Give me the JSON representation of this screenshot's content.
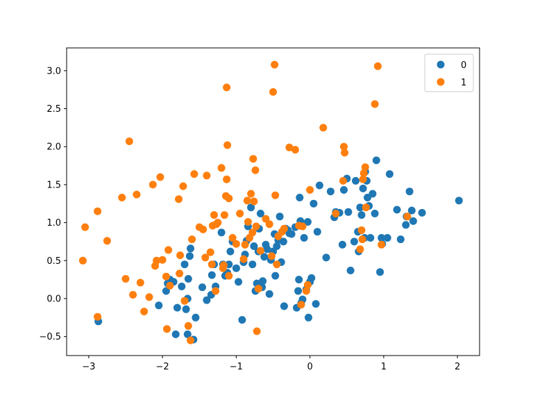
{
  "chart_data": {
    "type": "scatter",
    "xlim": [
      -3.3,
      2.3
    ],
    "ylim": [
      -0.75,
      3.3
    ],
    "xticks": [
      -3,
      -2,
      -1,
      0,
      1,
      2
    ],
    "xtick_labels": [
      "−3",
      "−2",
      "−1",
      "0",
      "1",
      "2"
    ],
    "yticks": [
      -0.5,
      0.0,
      0.5,
      1.0,
      1.5,
      2.0,
      2.5,
      3.0
    ],
    "ytick_labels": [
      "−0.5",
      "0.0",
      "0.5",
      "1.0",
      "1.5",
      "2.0",
      "2.5",
      "3.0"
    ],
    "grid": false,
    "legend_position": "top-right",
    "series": [
      {
        "name": "0",
        "color": "#1f77b4",
        "points": [
          [
            -2.87,
            -0.3
          ],
          [
            -2.05,
            -0.09
          ],
          [
            -1.95,
            0.1
          ],
          [
            -1.93,
            0.2
          ],
          [
            -1.9,
            0.25
          ],
          [
            -1.85,
            0.22
          ],
          [
            -1.8,
            -0.12
          ],
          [
            -1.82,
            -0.47
          ],
          [
            -1.74,
            0.16
          ],
          [
            -1.7,
            0.45
          ],
          [
            -1.68,
            -0.14
          ],
          [
            -1.66,
            0.0
          ],
          [
            -1.65,
            0.26
          ],
          [
            -1.66,
            -0.47
          ],
          [
            -1.63,
            0.56
          ],
          [
            -1.62,
            0.66
          ],
          [
            -1.58,
            -0.54
          ],
          [
            -1.55,
            -0.25
          ],
          [
            -1.46,
            0.15
          ],
          [
            -1.4,
            -0.02
          ],
          [
            -1.34,
            0.05
          ],
          [
            -1.33,
            0.31
          ],
          [
            -1.3,
            0.45
          ],
          [
            -1.28,
            0.16
          ],
          [
            -1.2,
            0.87
          ],
          [
            -1.18,
            0.45
          ],
          [
            -1.15,
            0.3
          ],
          [
            -1.12,
            0.34
          ],
          [
            -1.1,
            0.45
          ],
          [
            -1.08,
            0.62
          ],
          [
            -1.05,
            0.75
          ],
          [
            -1.0,
            0.4
          ],
          [
            -0.97,
            0.22
          ],
          [
            -0.92,
            -0.28
          ],
          [
            -0.9,
            0.48
          ],
          [
            -0.88,
            0.58
          ],
          [
            -0.86,
            0.76
          ],
          [
            -0.84,
            0.95
          ],
          [
            -0.8,
            1.2
          ],
          [
            -0.78,
            0.45
          ],
          [
            -0.76,
            0.69
          ],
          [
            -0.74,
            0.1
          ],
          [
            -0.72,
            0.2
          ],
          [
            -0.7,
            0.62
          ],
          [
            -0.69,
            0.92
          ],
          [
            -0.67,
            1.12
          ],
          [
            -0.65,
            0.15
          ],
          [
            -0.64,
            0.23
          ],
          [
            -0.62,
            0.55
          ],
          [
            -0.6,
            0.71
          ],
          [
            -0.58,
            0.65
          ],
          [
            -0.55,
            0.06
          ],
          [
            -0.53,
            0.51
          ],
          [
            -0.5,
            0.62
          ],
          [
            -0.48,
            0.85
          ],
          [
            -0.47,
            0.3
          ],
          [
            -0.45,
            0.69
          ],
          [
            -0.43,
            0.77
          ],
          [
            -0.41,
            1.08
          ],
          [
            -0.39,
            0.48
          ],
          [
            -0.36,
            0.75
          ],
          [
            -0.35,
            -0.1
          ],
          [
            -0.33,
            0.92
          ],
          [
            -0.3,
            0.9
          ],
          [
            -0.28,
            0.86
          ],
          [
            -0.25,
            0.85
          ],
          [
            -0.2,
            0.94
          ],
          [
            -0.18,
            -0.12
          ],
          [
            -0.16,
            0.1
          ],
          [
            -0.15,
            0.25
          ],
          [
            -0.14,
            1.33
          ],
          [
            -0.13,
            1.02
          ],
          [
            -0.12,
            -0.06
          ],
          [
            -0.1,
            -0.01
          ],
          [
            -0.08,
            0.8
          ],
          [
            -0.05,
            0.12
          ],
          [
            -0.03,
            1.01
          ],
          [
            -0.02,
            -0.25
          ],
          [
            0.0,
            0.22
          ],
          [
            0.02,
            0.27
          ],
          [
            0.05,
            1.25
          ],
          [
            0.08,
            -0.07
          ],
          [
            0.1,
            0.88
          ],
          [
            0.13,
            1.49
          ],
          [
            0.22,
            0.54
          ],
          [
            0.28,
            1.41
          ],
          [
            0.33,
            1.07
          ],
          [
            0.35,
            1.14
          ],
          [
            0.4,
            1.13
          ],
          [
            0.44,
            0.71
          ],
          [
            0.46,
            1.43
          ],
          [
            0.5,
            1.58
          ],
          [
            0.52,
            1.14
          ],
          [
            0.55,
            0.37
          ],
          [
            0.6,
            0.75
          ],
          [
            0.62,
            1.55
          ],
          [
            0.65,
            0.88
          ],
          [
            0.66,
            0.62
          ],
          [
            0.68,
            1.2
          ],
          [
            0.7,
            1.1
          ],
          [
            0.72,
            1.45
          ],
          [
            0.74,
            0.8
          ],
          [
            0.75,
            1.67
          ],
          [
            0.77,
            1.55
          ],
          [
            0.78,
            1.33
          ],
          [
            0.8,
            1.22
          ],
          [
            0.82,
            0.8
          ],
          [
            0.85,
            1.38
          ],
          [
            0.88,
            1.12
          ],
          [
            0.9,
            1.82
          ],
          [
            0.95,
            0.35
          ],
          [
            0.97,
            0.8
          ],
          [
            0.98,
            0.72
          ],
          [
            1.05,
            0.8
          ],
          [
            1.08,
            1.64
          ],
          [
            1.18,
            1.17
          ],
          [
            1.23,
            0.78
          ],
          [
            1.3,
            0.97
          ],
          [
            1.31,
            1.08
          ],
          [
            1.35,
            1.41
          ],
          [
            1.38,
            1.16
          ],
          [
            1.4,
            1.02
          ],
          [
            1.52,
            1.13
          ],
          [
            2.02,
            1.29
          ]
        ]
      },
      {
        "name": "1",
        "color": "#ff7f0e",
        "points": [
          [
            -3.08,
            0.5
          ],
          [
            -3.05,
            0.94
          ],
          [
            -2.88,
            1.15
          ],
          [
            -2.88,
            -0.24
          ],
          [
            -2.75,
            0.76
          ],
          [
            -2.55,
            1.33
          ],
          [
            -2.5,
            0.26
          ],
          [
            -2.45,
            2.07
          ],
          [
            -2.4,
            0.05
          ],
          [
            -2.35,
            1.37
          ],
          [
            -2.3,
            0.21
          ],
          [
            -2.25,
            -0.17
          ],
          [
            -2.18,
            0.02
          ],
          [
            -2.13,
            1.5
          ],
          [
            -2.1,
            0.43
          ],
          [
            -2.08,
            0.5
          ],
          [
            -2.03,
            1.6
          ],
          [
            -2.0,
            0.51
          ],
          [
            -1.95,
            0.29
          ],
          [
            -1.94,
            -0.4
          ],
          [
            -1.92,
            0.64
          ],
          [
            -1.9,
            0.17
          ],
          [
            -1.78,
            1.31
          ],
          [
            -1.77,
            0.33
          ],
          [
            -1.76,
            0.57
          ],
          [
            -1.72,
            1.48
          ],
          [
            -1.7,
            -0.03
          ],
          [
            -1.65,
            -0.36
          ],
          [
            -1.62,
            -0.55
          ],
          [
            -1.6,
            0.78
          ],
          [
            -1.57,
            1.64
          ],
          [
            -1.5,
            0.94
          ],
          [
            -1.45,
            0.91
          ],
          [
            -1.42,
            0.54
          ],
          [
            -1.4,
            1.62
          ],
          [
            -1.35,
            0.61
          ],
          [
            -1.33,
            0.45
          ],
          [
            -1.32,
            0.96
          ],
          [
            -1.3,
            1.1
          ],
          [
            -1.28,
            0.1
          ],
          [
            -1.27,
            0.98
          ],
          [
            -1.25,
            1.0
          ],
          [
            -1.2,
            1.72
          ],
          [
            -1.18,
            0.4
          ],
          [
            -1.17,
            0.44
          ],
          [
            -1.16,
            1.1
          ],
          [
            -1.14,
            1.35
          ],
          [
            -1.13,
            2.78
          ],
          [
            -1.13,
            1.57
          ],
          [
            -1.12,
            2.02
          ],
          [
            -1.1,
            0.3
          ],
          [
            -1.1,
            1.32
          ],
          [
            -1.05,
            0.8
          ],
          [
            -1.0,
            0.72
          ],
          [
            -0.95,
            1.12
          ],
          [
            -0.9,
            0.52
          ],
          [
            -0.88,
            0.71
          ],
          [
            -0.85,
            1.29
          ],
          [
            -0.84,
            1.01
          ],
          [
            -0.82,
            0.8
          ],
          [
            -0.8,
            1.38
          ],
          [
            -0.78,
            0.87
          ],
          [
            -0.77,
            1.84
          ],
          [
            -0.76,
            1.28
          ],
          [
            -0.74,
            1.69
          ],
          [
            -0.73,
            0.95
          ],
          [
            -0.72,
            -0.43
          ],
          [
            -0.7,
            0.13
          ],
          [
            -0.67,
            0.63
          ],
          [
            -0.6,
            1.05
          ],
          [
            -0.55,
            0.98
          ],
          [
            -0.52,
            0.56
          ],
          [
            -0.5,
            2.72
          ],
          [
            -0.48,
            3.08
          ],
          [
            -0.47,
            1.36
          ],
          [
            -0.45,
            0.45
          ],
          [
            -0.43,
            0.82
          ],
          [
            -0.38,
            0.88
          ],
          [
            -0.35,
            0.92
          ],
          [
            -0.28,
            1.99
          ],
          [
            -0.2,
            1.96
          ],
          [
            -0.15,
            0.96
          ],
          [
            -0.12,
            -0.08
          ],
          [
            -0.1,
            0.95
          ],
          [
            -0.05,
            0.1
          ],
          [
            -0.03,
            0.18
          ],
          [
            0.0,
            1.43
          ],
          [
            0.18,
            2.25
          ],
          [
            0.35,
            1.12
          ],
          [
            0.45,
            1.55
          ],
          [
            0.46,
            2.0
          ],
          [
            0.47,
            1.92
          ],
          [
            0.68,
            0.65
          ],
          [
            0.7,
            0.9
          ],
          [
            0.71,
            0.78
          ],
          [
            0.72,
            1.57
          ],
          [
            0.73,
            1.65
          ],
          [
            0.75,
            1.73
          ],
          [
            0.76,
            1.2
          ],
          [
            0.88,
            2.56
          ],
          [
            0.92,
            3.06
          ],
          [
            0.97,
            0.71
          ],
          [
            1.32,
            1.08
          ]
        ]
      }
    ]
  }
}
